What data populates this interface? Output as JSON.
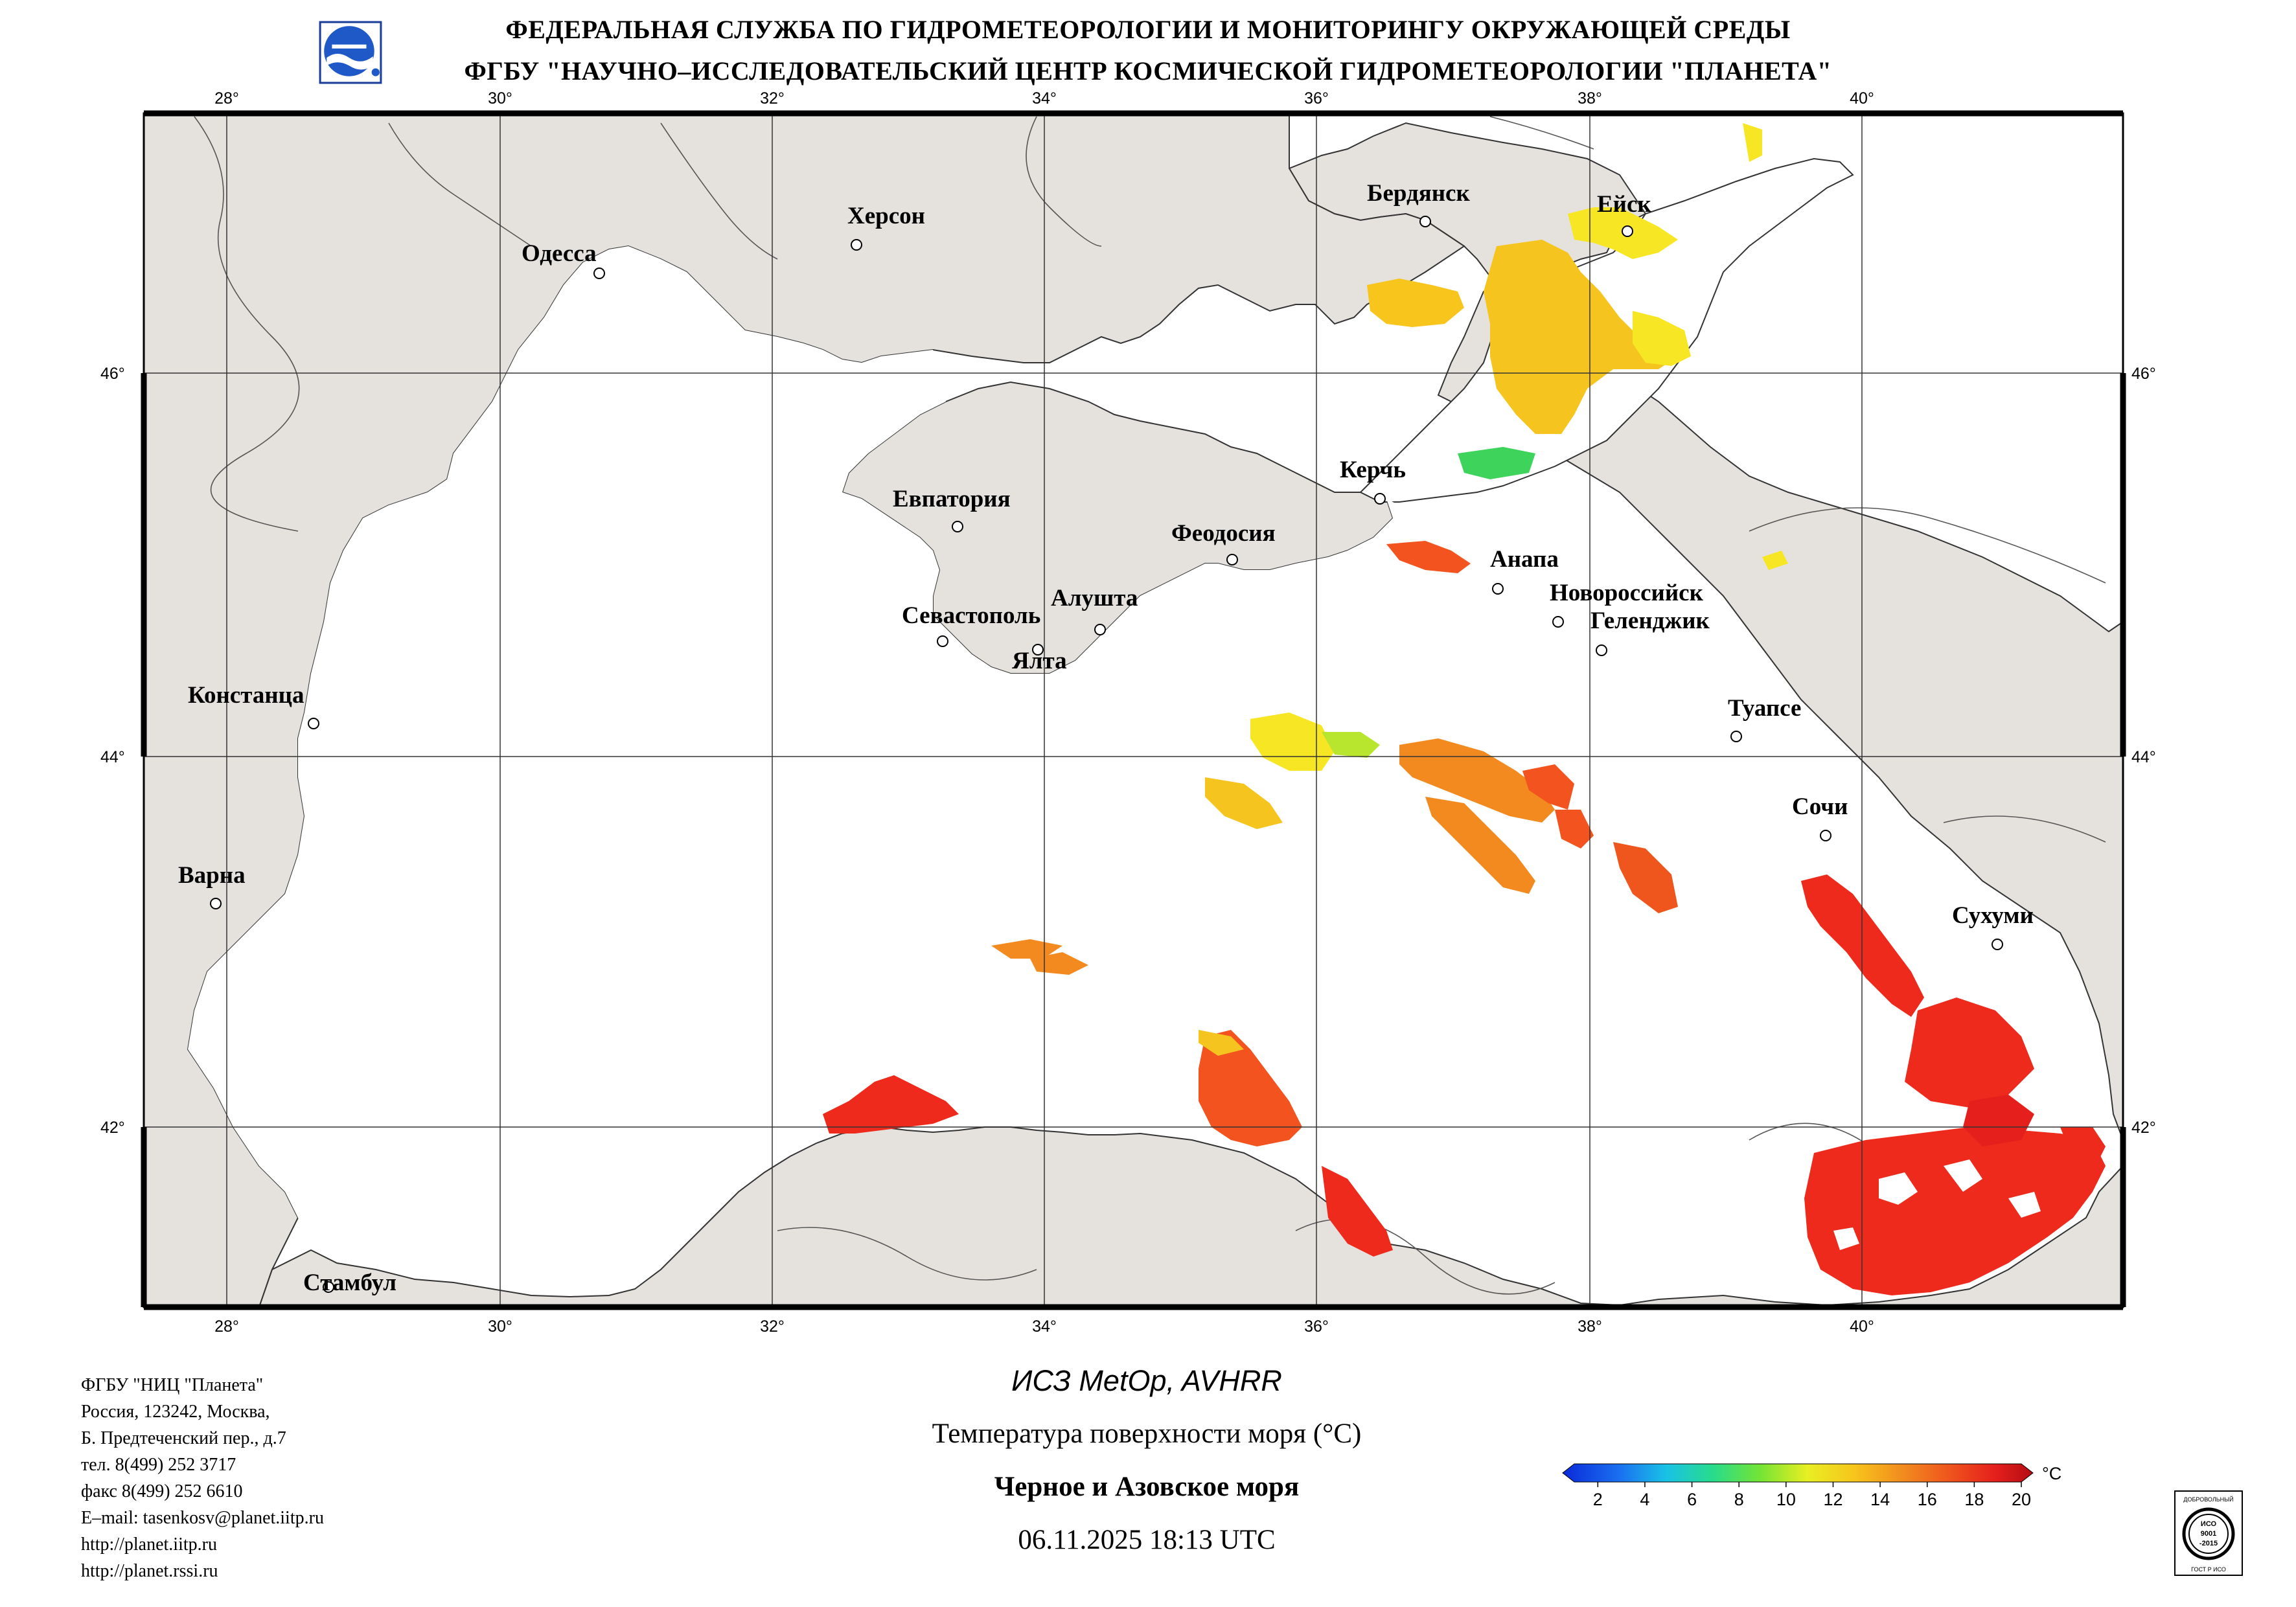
{
  "header": {
    "line1": "ФЕДЕРАЛЬНАЯ СЛУЖБА ПО ГИДРОМЕТЕОРОЛОГИИ И МОНИТОРИНГУ ОКРУЖАЮЩЕЙ СРЕДЫ",
    "line2": "ФГБУ \"НАУЧНО–ИССЛЕДОВАТЕЛЬСКИЙ ЦЕНТР КОСМИЧЕСКОЙ ГИДРОМЕТЕОРОЛОГИИ \"ПЛАНЕТА\""
  },
  "map": {
    "lon_labels": [
      "28°",
      "30°",
      "32°",
      "34°",
      "36°",
      "38°",
      "40°"
    ],
    "lat_labels": [
      "46°",
      "44°",
      "42°"
    ],
    "cities": {
      "odessa": "Одесса",
      "kherson": "Херсон",
      "berdyansk": "Бердянск",
      "yeysk": "Ейск",
      "kerch": "Керчь",
      "evpatoria": "Евпатория",
      "feodosia": "Феодосия",
      "anapa": "Анапа",
      "novorossiysk": "Новороссийск",
      "gelendzhik": "Геленджик",
      "sevastopol": "Севастополь",
      "alushta": "Алушта",
      "yalta": "Ялта",
      "constanta": "Констанца",
      "tuapse": "Туапсе",
      "sochi": "Сочи",
      "varna": "Варна",
      "sukhumi": "Сухуми",
      "istanbul": "Стамбул"
    },
    "colors": {
      "land": "#e5e2de",
      "sea_no_data": "#ffffff",
      "sst_18": "#ee2a1c",
      "sst_16": "#f3531f",
      "sst_14": "#f28a1f",
      "sst_12": "#f6c41e",
      "sst_10": "#f6e623",
      "sst_8": "#b8e62f",
      "sst_6": "#3ed35a"
    }
  },
  "captions": {
    "satellite": "ИСЗ MetOp, AVHRR",
    "parameter": "Температура поверхности моря (°C)",
    "region": "Черное и Азовское моря",
    "datetime": "06.11.2025 18:13 UTC"
  },
  "colorbar": {
    "unit": "°C",
    "ticks": [
      "2",
      "4",
      "6",
      "8",
      "10",
      "12",
      "14",
      "16",
      "18",
      "20"
    ],
    "min": 1,
    "max": 20,
    "colors": [
      "#0a2ad8",
      "#1a6ff0",
      "#19c2e6",
      "#28dc8a",
      "#74e434",
      "#e8ef23",
      "#f7c51c",
      "#f28d1e",
      "#ef561d",
      "#e51f1c",
      "#b40d14"
    ]
  },
  "contacts": [
    "ФГБУ \"НИЦ \"Планета\"",
    "Россия, 123242, Москва,",
    "Б. Предтеченский пер., д.7",
    "тел. 8(499) 252 3717",
    "факс 8(499) 252 6610",
    "E–mail: tasenkosv@planet.iitp.ru",
    "http://planet.iitp.ru",
    "http://planet.rssi.ru"
  ],
  "certificate": {
    "top": "ДОБРОВОЛЬНЫЙ",
    "middle1": "ИСО",
    "middle2": "9001",
    "middle3": "-2015",
    "bottom": "ГОСТ Р ИСО"
  }
}
